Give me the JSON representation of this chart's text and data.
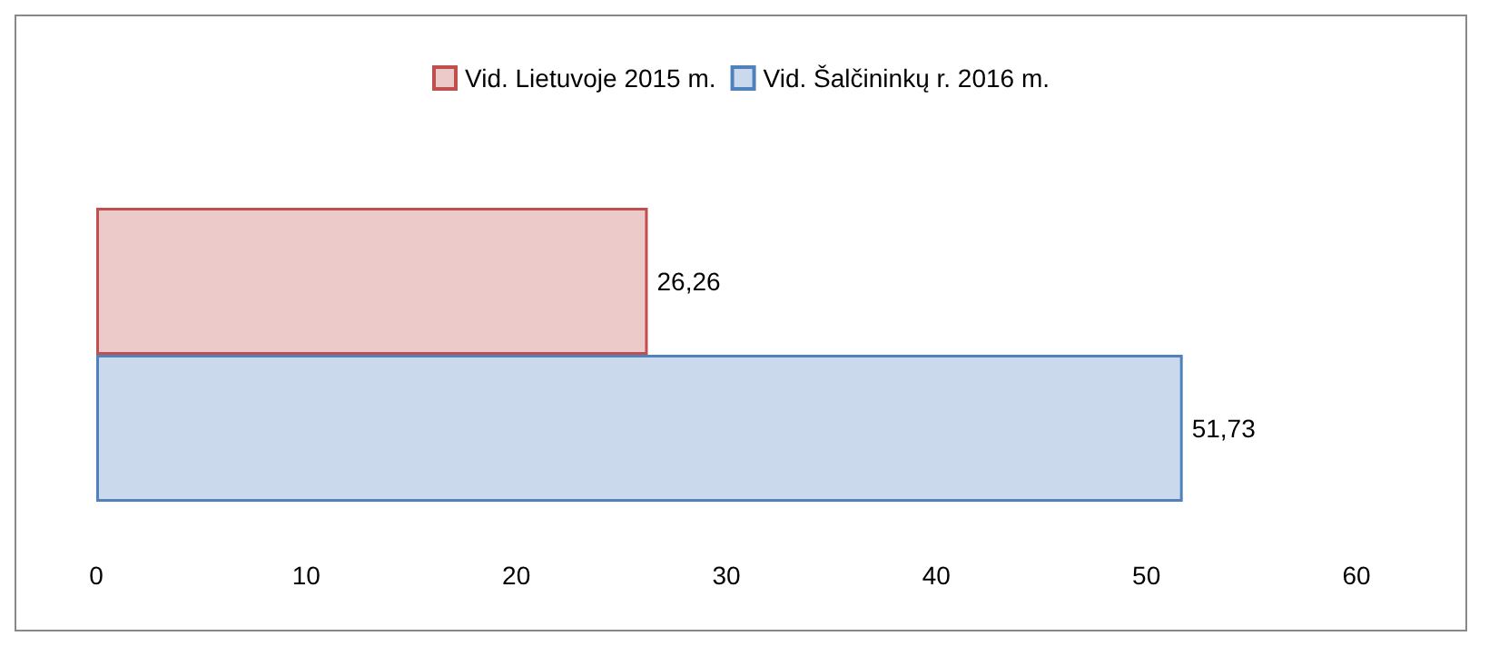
{
  "chart_data": {
    "type": "bar",
    "orientation": "horizontal",
    "categories": [
      null
    ],
    "series": [
      {
        "name": "Vid. Lietuvoje 2015 m.",
        "color": "#c0504d",
        "values": [
          26.26
        ],
        "value_labels": [
          "26,26"
        ]
      },
      {
        "name": "Vid. Šalčininkų r. 2016 m.",
        "color": "#4f81bd",
        "values": [
          51.73
        ],
        "value_labels": [
          "51,73"
        ]
      }
    ],
    "xlim": [
      0,
      60
    ],
    "xticks": [
      0,
      10,
      20,
      30,
      40,
      50,
      60
    ],
    "grid": false,
    "legend": "top"
  }
}
